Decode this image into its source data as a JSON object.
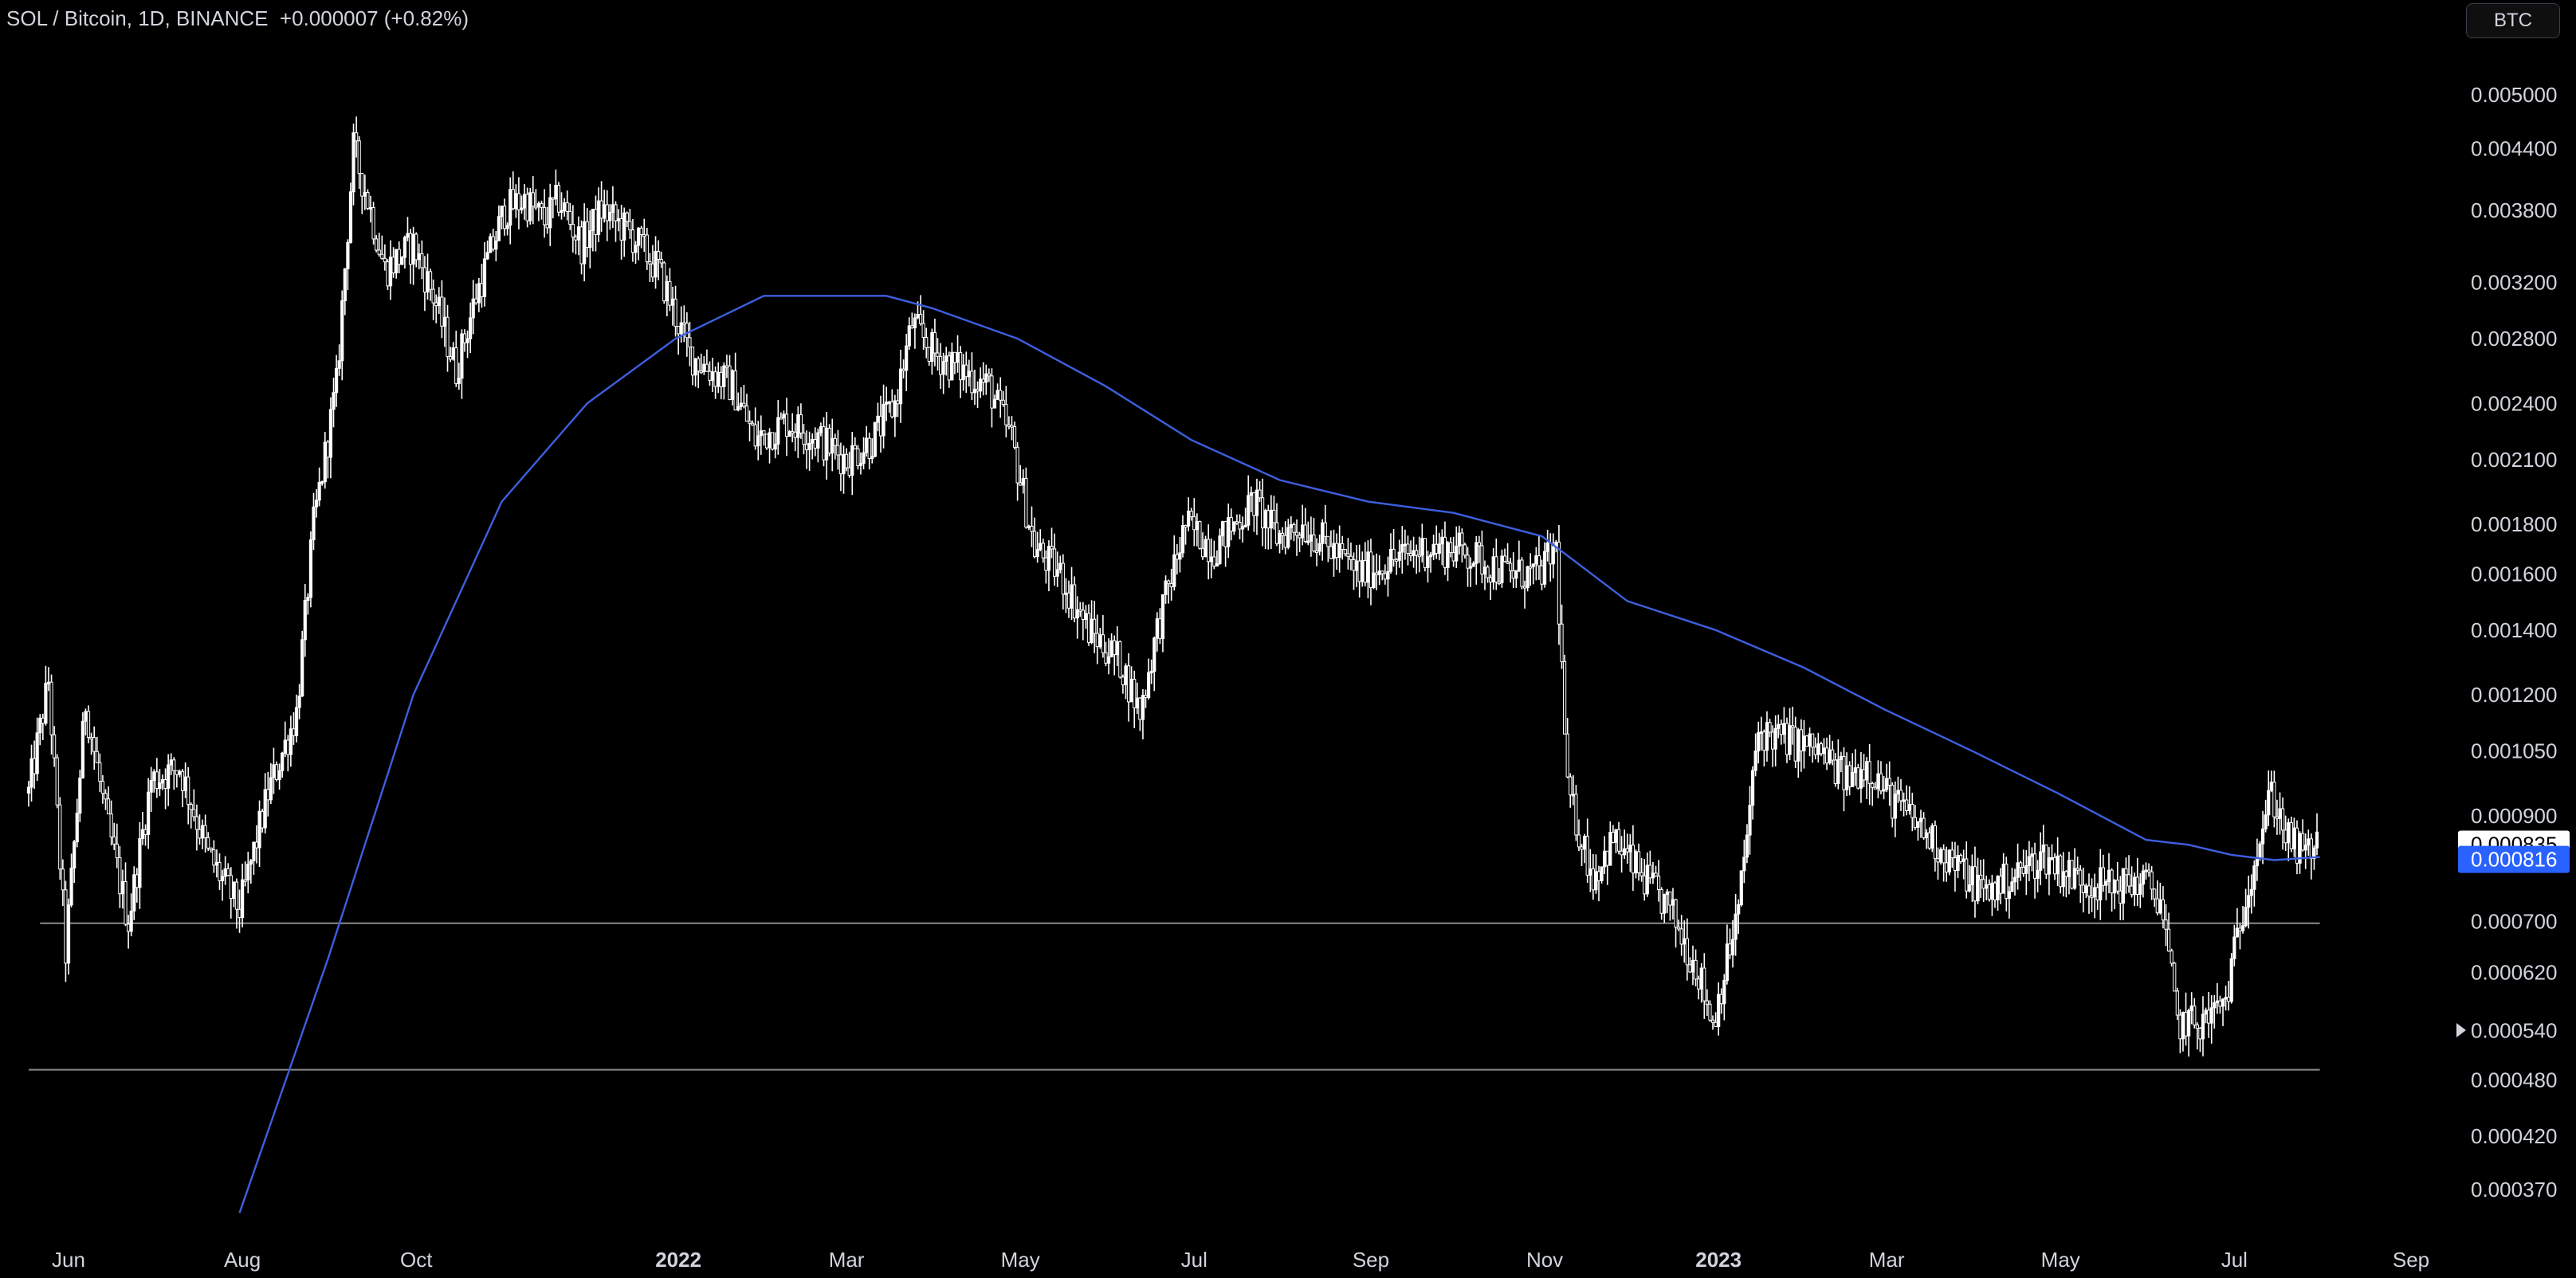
{
  "header": {
    "title": "SOL / Bitcoin, 1D, BINANCE  +0.000007 (+0.82%)",
    "currency_button": "BTC"
  },
  "colors": {
    "background": "#000000",
    "candle": "#ffffff",
    "ma_line": "#3e5fe0",
    "level_line": "#8a8a8a",
    "current_price_label_bg": "#ffffff",
    "ma_label_bg": "#2962ff"
  },
  "chart_data": {
    "type": "candlestick",
    "title": "SOL / Bitcoin, 1D, BINANCE",
    "change": "+0.000007 (+0.82%)",
    "scale": "log",
    "ylim": [
      0.00033,
      0.0055
    ],
    "xlim": [
      "2021-05-18",
      "2023-09-08"
    ],
    "x_ticks": [
      {
        "date": "2021-06-01",
        "label": "Jun",
        "bold": false
      },
      {
        "date": "2021-08-01",
        "label": "Aug",
        "bold": false
      },
      {
        "date": "2021-10-01",
        "label": "Oct",
        "bold": false
      },
      {
        "date": "2022-01-01",
        "label": "2022",
        "bold": true
      },
      {
        "date": "2022-03-01",
        "label": "Mar",
        "bold": false
      },
      {
        "date": "2022-05-01",
        "label": "May",
        "bold": false
      },
      {
        "date": "2022-07-01",
        "label": "Jul",
        "bold": false
      },
      {
        "date": "2022-09-01",
        "label": "Sep",
        "bold": false
      },
      {
        "date": "2022-11-01",
        "label": "Nov",
        "bold": false
      },
      {
        "date": "2023-01-01",
        "label": "2023",
        "bold": true
      },
      {
        "date": "2023-03-01",
        "label": "Mar",
        "bold": false
      },
      {
        "date": "2023-05-01",
        "label": "May",
        "bold": false
      },
      {
        "date": "2023-07-01",
        "label": "Jul",
        "bold": false
      },
      {
        "date": "2023-09-01",
        "label": "Sep",
        "bold": false
      }
    ],
    "y_ticks": [
      {
        "value": 0.005,
        "label": "0.005000"
      },
      {
        "value": 0.0044,
        "label": "0.004400"
      },
      {
        "value": 0.0038,
        "label": "0.003800"
      },
      {
        "value": 0.0032,
        "label": "0.003200"
      },
      {
        "value": 0.0028,
        "label": "0.002800"
      },
      {
        "value": 0.0024,
        "label": "0.002400"
      },
      {
        "value": 0.0021,
        "label": "0.002100"
      },
      {
        "value": 0.0018,
        "label": "0.001800"
      },
      {
        "value": 0.0016,
        "label": "0.001600"
      },
      {
        "value": 0.0014,
        "label": "0.001400"
      },
      {
        "value": 0.0012,
        "label": "0.001200"
      },
      {
        "value": 0.00105,
        "label": "0.001050"
      },
      {
        "value": 0.0009,
        "label": "0.000900"
      },
      {
        "value": 0.0007,
        "label": "0.000700"
      },
      {
        "value": 0.00062,
        "label": "0.000620"
      },
      {
        "value": 0.00054,
        "label": "0.000540"
      },
      {
        "value": 0.00048,
        "label": "0.000480"
      },
      {
        "value": 0.00042,
        "label": "0.000420"
      },
      {
        "value": 0.00037,
        "label": "0.000370"
      }
    ],
    "price_labels": [
      {
        "name": "current-price",
        "value": 0.000835,
        "label": "0.000835"
      },
      {
        "name": "moving-average",
        "value": 0.000816,
        "label": "0.000816"
      }
    ],
    "horizontal_levels": [
      {
        "value": 0.000697,
        "from": "2021-05-22",
        "to": "2023-07-31"
      },
      {
        "value": 0.000492,
        "from": "2021-05-18",
        "to": "2023-07-31"
      }
    ],
    "price_path": [
      [
        "2021-05-18",
        0.00095
      ],
      [
        "2021-05-25",
        0.00124
      ],
      [
        "2021-05-31",
        0.00065
      ],
      [
        "2021-06-07",
        0.00118
      ],
      [
        "2021-06-14",
        0.0009
      ],
      [
        "2021-06-22",
        0.0007
      ],
      [
        "2021-06-30",
        0.00098
      ],
      [
        "2021-07-10",
        0.00101
      ],
      [
        "2021-07-20",
        0.00082
      ],
      [
        "2021-07-31",
        0.00072
      ],
      [
        "2021-08-10",
        0.00095
      ],
      [
        "2021-08-20",
        0.00115
      ],
      [
        "2021-08-26",
        0.0018
      ],
      [
        "2021-09-03",
        0.0025
      ],
      [
        "2021-09-09",
        0.0044
      ],
      [
        "2021-09-14",
        0.0039
      ],
      [
        "2021-09-20",
        0.0033
      ],
      [
        "2021-09-30",
        0.0035
      ],
      [
        "2021-10-07",
        0.0031
      ],
      [
        "2021-10-15",
        0.0026
      ],
      [
        "2021-10-22",
        0.0031
      ],
      [
        "2021-11-01",
        0.0038
      ],
      [
        "2021-11-08",
        0.0039
      ],
      [
        "2021-11-15",
        0.0037
      ],
      [
        "2021-11-20",
        0.0039
      ],
      [
        "2021-11-28",
        0.0035
      ],
      [
        "2021-12-05",
        0.0038
      ],
      [
        "2021-12-15",
        0.0036
      ],
      [
        "2021-12-25",
        0.0033
      ],
      [
        "2022-01-05",
        0.0027
      ],
      [
        "2022-01-12",
        0.0026
      ],
      [
        "2022-01-20",
        0.0025
      ],
      [
        "2022-01-28",
        0.0022
      ],
      [
        "2022-02-08",
        0.0023
      ],
      [
        "2022-02-20",
        0.0022
      ],
      [
        "2022-03-01",
        0.0021
      ],
      [
        "2022-03-10",
        0.0022
      ],
      [
        "2022-03-18",
        0.0024
      ],
      [
        "2022-03-24",
        0.0029
      ],
      [
        "2022-04-01",
        0.0027
      ],
      [
        "2022-04-10",
        0.0026
      ],
      [
        "2022-04-20",
        0.0025
      ],
      [
        "2022-04-28",
        0.0022
      ],
      [
        "2022-05-06",
        0.0017
      ],
      [
        "2022-05-15",
        0.0016
      ],
      [
        "2022-05-25",
        0.0014
      ],
      [
        "2022-06-05",
        0.0013
      ],
      [
        "2022-06-12",
        0.00115
      ],
      [
        "2022-06-18",
        0.0014
      ],
      [
        "2022-06-28",
        0.0018
      ],
      [
        "2022-07-08",
        0.0017
      ],
      [
        "2022-07-15",
        0.0018
      ],
      [
        "2022-07-22",
        0.0019
      ],
      [
        "2022-07-30",
        0.00175
      ],
      [
        "2022-08-08",
        0.0018
      ],
      [
        "2022-08-18",
        0.0017
      ],
      [
        "2022-08-28",
        0.0016
      ],
      [
        "2022-09-08",
        0.00165
      ],
      [
        "2022-09-20",
        0.0017
      ],
      [
        "2022-10-01",
        0.0017
      ],
      [
        "2022-10-10",
        0.00165
      ],
      [
        "2022-10-20",
        0.0016
      ],
      [
        "2022-10-30",
        0.0016
      ],
      [
        "2022-11-05",
        0.0017
      ],
      [
        "2022-11-09",
        0.00095
      ],
      [
        "2022-11-18",
        0.00078
      ],
      [
        "2022-11-25",
        0.00085
      ],
      [
        "2022-12-05",
        0.00078
      ],
      [
        "2022-12-15",
        0.00072
      ],
      [
        "2022-12-25",
        0.00062
      ],
      [
        "2022-12-30",
        0.00055
      ],
      [
        "2023-01-08",
        0.00072
      ],
      [
        "2023-01-15",
        0.0011
      ],
      [
        "2023-01-25",
        0.00108
      ],
      [
        "2023-02-05",
        0.00105
      ],
      [
        "2023-02-15",
        0.00098
      ],
      [
        "2023-02-22",
        0.00102
      ],
      [
        "2023-03-01",
        0.00095
      ],
      [
        "2023-03-12",
        0.00088
      ],
      [
        "2023-03-25",
        0.0008
      ],
      [
        "2023-04-05",
        0.00075
      ],
      [
        "2023-04-15",
        0.00078
      ],
      [
        "2023-04-25",
        0.00082
      ],
      [
        "2023-05-05",
        0.00078
      ],
      [
        "2023-05-18",
        0.00076
      ],
      [
        "2023-05-30",
        0.00077
      ],
      [
        "2023-06-05",
        0.00074
      ],
      [
        "2023-06-11",
        0.00055
      ],
      [
        "2023-06-20",
        0.00055
      ],
      [
        "2023-06-28",
        0.00058
      ],
      [
        "2023-07-05",
        0.00075
      ],
      [
        "2023-07-14",
        0.00095
      ],
      [
        "2023-07-20",
        0.00085
      ],
      [
        "2023-07-25",
        0.00082
      ],
      [
        "2023-07-30",
        0.00084
      ]
    ],
    "ma_path": [
      [
        "2021-07-31",
        0.00035
      ],
      [
        "2021-08-31",
        0.00064
      ],
      [
        "2021-09-30",
        0.0012
      ],
      [
        "2021-10-31",
        0.0019
      ],
      [
        "2021-11-30",
        0.0024
      ],
      [
        "2021-12-31",
        0.0028
      ],
      [
        "2022-01-31",
        0.0031
      ],
      [
        "2022-02-28",
        0.0031
      ],
      [
        "2022-03-15",
        0.0031
      ],
      [
        "2022-03-31",
        0.00301
      ],
      [
        "2022-04-30",
        0.0028
      ],
      [
        "2022-05-31",
        0.0025
      ],
      [
        "2022-06-30",
        0.0022
      ],
      [
        "2022-07-31",
        0.002
      ],
      [
        "2022-08-31",
        0.0019
      ],
      [
        "2022-09-30",
        0.00185
      ],
      [
        "2022-10-31",
        0.00175
      ],
      [
        "2022-11-30",
        0.0015
      ],
      [
        "2022-12-31",
        0.0014
      ],
      [
        "2023-01-31",
        0.00128
      ],
      [
        "2023-02-28",
        0.00116
      ],
      [
        "2023-03-31",
        0.00105
      ],
      [
        "2023-04-30",
        0.00095
      ],
      [
        "2023-05-31",
        0.00085
      ],
      [
        "2023-06-15",
        0.00084
      ],
      [
        "2023-06-30",
        0.00082
      ],
      [
        "2023-07-15",
        0.00081
      ],
      [
        "2023-07-31",
        0.000816
      ]
    ]
  }
}
